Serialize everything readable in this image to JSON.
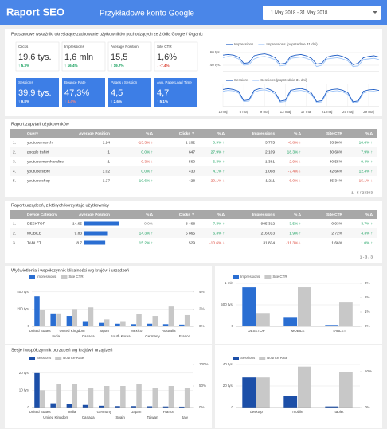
{
  "header": {
    "title": "Raport SEO",
    "account": "Przykładowe konto Google",
    "date_range": "1 May 2018 - 31 May 2018"
  },
  "summary": {
    "title": "Podstawowe wskaźniki określające zachowanie użytkowników pochodzących ze źródła Google / Organic",
    "scorecards": [
      {
        "label": "Clicks",
        "value": "19,6 tys.",
        "delta": "↑ 5.3%",
        "delta_color": "#0f9d58"
      },
      {
        "label": "Impressions",
        "value": "1,6 mln",
        "delta": "↑ 16.4%",
        "delta_color": "#0f9d58"
      },
      {
        "label": "Average Position",
        "value": "15,5",
        "delta": "↑ 19.7%",
        "delta_color": "#0f9d58"
      },
      {
        "label": "Site CTR",
        "value": "1,6%",
        "delta": "↓ -7.4%",
        "delta_color": "#db4437"
      }
    ],
    "highlight_scorecards": [
      {
        "label": "Sessions",
        "value": "39,9 tys.",
        "delta": "↑ 9.8%",
        "delta_color": "#ffffff"
      },
      {
        "label": "Bounce Rate",
        "value": "47,3%",
        "delta": "↑ 4.4%",
        "delta_color": "#ff8a80"
      },
      {
        "label": "Pages / Session",
        "value": "4,5",
        "delta": "↑ 2.6%",
        "delta_color": "#ffffff"
      },
      {
        "label": "Avg. Page Load Time",
        "value": "4,7",
        "delta": "↑ 5.1%",
        "delta_color": "#ffffff"
      }
    ]
  },
  "queries": {
    "title": "Raport zapytań użytkowników",
    "columns": [
      "Query",
      "Average Position",
      "% Δ",
      "Clicks ▼",
      "% Δ",
      "Impressions",
      "% Δ",
      "Site CTR",
      "% Δ"
    ],
    "rows": [
      [
        "1.",
        "youtube merch",
        "1.24",
        "-13.3% ↓",
        "1 282",
        "0.9% ↑",
        "3 775",
        "-8.8% ↓",
        "33.96%",
        "10.6% ↑"
      ],
      [
        "2.",
        "google t shirt",
        "1",
        "0.0% ↑",
        "647",
        "27.9% ↑",
        "2 109",
        "18.3% ↑",
        "30.68%",
        "7.9% ↑"
      ],
      [
        "3.",
        "youtube merchandise",
        "1",
        "-0.3% ↓",
        "560",
        "6.3% ↑",
        "1 381",
        "-2.9% ↓",
        "40.55%",
        "9.4% ↑"
      ],
      [
        "4.",
        "youtube store",
        "1.02",
        "0.0% ↑",
        "430",
        "4.1% ↑",
        "1 008",
        "-7.4% ↓",
        "42.66%",
        "12.4% ↑"
      ],
      [
        "5.",
        "youtube shop",
        "1.27",
        "10.6% ↑",
        "428",
        "-20.1% ↓",
        "1 211",
        "-6.0% ↓",
        "35.34%",
        "-15.1% ↓"
      ]
    ],
    "pager": "1 - 5 / 23393"
  },
  "devices": {
    "title": "Raport urządzeń, z których korzystają użytkownicy",
    "columns": [
      "Device Category",
      "Average Position",
      "% Δ",
      "Clicks ▼",
      "% Δ",
      "Impressions",
      "% Δ",
      "Site CTR",
      "% Δ"
    ],
    "rows": [
      [
        "1.",
        "DESKTOP",
        14.65,
        "0.0%",
        "8 468",
        "7.3% ↑",
        "905 312",
        "3.5% ↑",
        "0.93%",
        "3.7% ↑"
      ],
      [
        "2.",
        "MOBILE",
        9.83,
        "14.3% ↑",
        "5 865",
        "6.3% ↑",
        "216 013",
        "1.9% ↑",
        "2.72%",
        "4.3% ↑"
      ],
      [
        "3.",
        "TABLET",
        8.7,
        "15.2% ↑",
        "529",
        "-10.6% ↓",
        "31 834",
        "-11.3% ↓",
        "1.66%",
        "1.0% ↑"
      ]
    ],
    "pager": "1 - 3 / 3"
  },
  "panel_titles": [
    "Wyświetlenia i współczynnik klikalności wg krajów i urządzeń",
    "Sesje i współczynnik odrzuceń wg krajów i urządzeń"
  ],
  "chart_data": [
    {
      "type": "line",
      "ylim": [
        30000,
        65000
      ],
      "yticks": [
        {
          "value": 40000,
          "label": "40 tys."
        },
        {
          "value": 60000,
          "label": "60 tys."
        }
      ],
      "series": [
        {
          "name": "Impressions",
          "color": "#1c5bc4",
          "values": [
            56000,
            57000,
            56000,
            53000,
            43000,
            44000,
            55000,
            57000,
            58000,
            56000,
            52000,
            42000,
            43000,
            54000,
            56000,
            57000,
            55000,
            51000,
            42000,
            43000,
            53000,
            55000,
            56000,
            54000,
            50000,
            41000,
            43000,
            52000,
            54000,
            55000,
            53000
          ]
        },
        {
          "name": "Impressions (poprzednie 31 dni)",
          "color": "#9fc5f8",
          "values": [
            52000,
            54000,
            53000,
            50000,
            40000,
            41000,
            50000,
            53000,
            54000,
            52000,
            49000,
            39000,
            40000,
            51000,
            52000,
            53000,
            51000,
            48000,
            38000,
            40000,
            50000,
            51000,
            52000,
            50000,
            47000,
            38000,
            39000,
            49000,
            50000,
            51000,
            49000
          ]
        }
      ]
    },
    {
      "type": "line",
      "ylim": [
        500,
        1800
      ],
      "categories": [
        "1 maj",
        null,
        null,
        null,
        "5 maj",
        null,
        null,
        null,
        "9 maj",
        null,
        null,
        null,
        "13 maj",
        null,
        null,
        null,
        "17 maj",
        null,
        null,
        null,
        "21 maj",
        null,
        null,
        null,
        "25 maj",
        null,
        null,
        null,
        "29 maj",
        null,
        null
      ],
      "series": [
        {
          "name": "Sessions",
          "color": "#1c5bc4",
          "values": [
            1500,
            1550,
            1500,
            1400,
            850,
            900,
            1450,
            1550,
            1600,
            1500,
            1350,
            820,
            880,
            1450,
            1520,
            1560,
            1480,
            1300,
            800,
            850,
            1420,
            1500,
            1530,
            1460,
            1320,
            780,
            840,
            1400,
            1480,
            1500,
            1450
          ]
        },
        {
          "name": "Sessions (poprzednie 31 dni)",
          "color": "#9fc5f8",
          "values": [
            1400,
            1450,
            1420,
            1300,
            800,
            820,
            1350,
            1450,
            1480,
            1400,
            1250,
            760,
            800,
            1350,
            1420,
            1450,
            1380,
            1200,
            740,
            780,
            1320,
            1400,
            1430,
            1360,
            1220,
            720,
            780,
            1300,
            1380,
            1400,
            1350
          ]
        }
      ]
    },
    {
      "type": "bar",
      "categories": [
        "United States",
        "India",
        "United Kingdom",
        "Canada",
        "Japan",
        "South Korea",
        "Mexico",
        "Germany",
        "Australia",
        "France"
      ],
      "ylim": [
        0,
        500000
      ],
      "yticks": [
        0,
        {
          "value": 200000,
          "label": "200 tys."
        },
        {
          "value": 400000,
          "label": "400 tys."
        }
      ],
      "y2lim": [
        0,
        5
      ],
      "y2ticks": [
        {
          "value": 0,
          "label": "0%"
        },
        {
          "value": 2,
          "label": "2%"
        },
        {
          "value": 4,
          "label": "4%"
        }
      ],
      "series": [
        {
          "name": "Impressions",
          "color": "#2a6ed2",
          "values": [
            350000,
            150000,
            120000,
            60000,
            40000,
            30000,
            25000,
            30000,
            25000,
            20000
          ]
        },
        {
          "name": "Site CTR",
          "color": "#c8c8c8",
          "axis": "y2",
          "values": [
            1.9,
            1.5,
            2.0,
            2.2,
            0.8,
            0.6,
            1.4,
            1.2,
            2.3,
            1.3
          ]
        }
      ]
    },
    {
      "type": "bar",
      "categories": [
        "DESKTOP",
        "MOBILE",
        "TABLET"
      ],
      "ylim": [
        0,
        1000000
      ],
      "yticks": [
        0,
        {
          "value": 500000,
          "label": "500 tys."
        },
        {
          "value": 1000000,
          "label": "1 mln"
        }
      ],
      "y2lim": [
        0,
        3
      ],
      "y2ticks": [
        {
          "value": 0,
          "label": "0%"
        },
        {
          "value": 1,
          "label": "1%"
        },
        {
          "value": 2,
          "label": "2%"
        },
        {
          "value": 3,
          "label": "3%"
        }
      ],
      "series": [
        {
          "name": "Impressions",
          "color": "#2a6ed2",
          "values": [
            905312,
            216013,
            31834
          ]
        },
        {
          "name": "Site CTR",
          "color": "#c8c8c8",
          "axis": "y2",
          "values": [
            0.93,
            2.72,
            1.66
          ]
        }
      ]
    },
    {
      "type": "bar",
      "categories": [
        "United States",
        "United Kingdom",
        "India",
        "Canada",
        "Germany",
        "Spain",
        "Japan",
        "Taiwan",
        "France",
        "Italy"
      ],
      "ylim": [
        0,
        25000
      ],
      "yticks": [
        0,
        {
          "value": 10000,
          "label": "10 tys."
        },
        {
          "value": 20000,
          "label": "20 tys."
        }
      ],
      "y2lim": [
        0,
        100
      ],
      "y2ticks": [
        {
          "value": 0,
          "label": "0%"
        },
        {
          "value": 50,
          "label": "50%"
        },
        {
          "value": 100,
          "label": "100%"
        }
      ],
      "series": [
        {
          "name": "Sessions",
          "color": "#1c4fa8",
          "values": [
            20000,
            2500,
            2000,
            1500,
            1000,
            800,
            800,
            700,
            600,
            500
          ]
        },
        {
          "name": "Bounce Rate",
          "color": "#c8c8c8",
          "axis": "y2",
          "values": [
            40,
            55,
            55,
            45,
            50,
            50,
            55,
            45,
            50,
            45
          ]
        }
      ]
    },
    {
      "type": "bar",
      "categories": [
        "desktop",
        "mobile",
        "tablet"
      ],
      "ylim": [
        0,
        40000
      ],
      "yticks": [
        0,
        {
          "value": 20000,
          "label": "20 tys."
        },
        {
          "value": 40000,
          "label": "40 tys."
        }
      ],
      "y2lim": [
        0,
        60
      ],
      "y2ticks": [
        {
          "value": 0,
          "label": "0%"
        },
        {
          "value": 50,
          "label": "50%"
        }
      ],
      "series": [
        {
          "name": "Sessions",
          "color": "#1c4fa8",
          "values": [
            28000,
            11000,
            1000
          ]
        },
        {
          "name": "Bounce Rate",
          "color": "#c8c8c8",
          "axis": "y2",
          "values": [
            42,
            57,
            50
          ]
        }
      ]
    }
  ]
}
